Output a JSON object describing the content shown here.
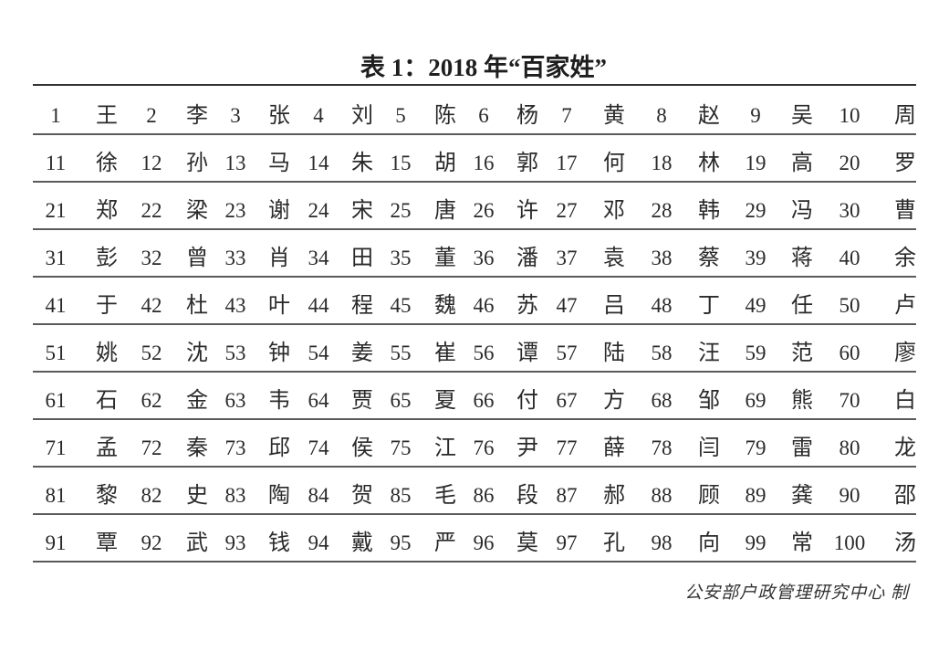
{
  "title": "表 1：2018 年“百家姓”",
  "rows": [
    [
      "王",
      "李",
      "张",
      "刘",
      "陈",
      "杨",
      "黄",
      "赵",
      "吴",
      "周"
    ],
    [
      "徐",
      "孙",
      "马",
      "朱",
      "胡",
      "郭",
      "何",
      "林",
      "高",
      "罗"
    ],
    [
      "郑",
      "梁",
      "谢",
      "宋",
      "唐",
      "许",
      "邓",
      "韩",
      "冯",
      "曹"
    ],
    [
      "彭",
      "曾",
      "肖",
      "田",
      "董",
      "潘",
      "袁",
      "蔡",
      "蒋",
      "余"
    ],
    [
      "于",
      "杜",
      "叶",
      "程",
      "魏",
      "苏",
      "吕",
      "丁",
      "任",
      "卢"
    ],
    [
      "姚",
      "沈",
      "钟",
      "姜",
      "崔",
      "谭",
      "陆",
      "汪",
      "范",
      "廖"
    ],
    [
      "石",
      "金",
      "韦",
      "贾",
      "夏",
      "付",
      "方",
      "邹",
      "熊",
      "白"
    ],
    [
      "孟",
      "秦",
      "邱",
      "侯",
      "江",
      "尹",
      "薛",
      "闫",
      "雷",
      "龙"
    ],
    [
      "黎",
      "史",
      "陶",
      "贺",
      "毛",
      "段",
      "郝",
      "顾",
      "龚",
      "邵"
    ],
    [
      "覃",
      "武",
      "钱",
      "戴",
      "严",
      "莫",
      "孔",
      "向",
      "常",
      "汤"
    ]
  ],
  "footer": "公安部户政管理研究中心 制"
}
